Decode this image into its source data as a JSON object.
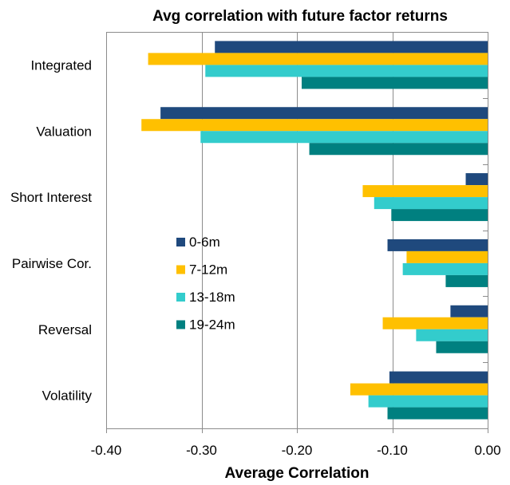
{
  "chart_data": {
    "type": "bar",
    "orientation": "horizontal",
    "title": "Avg correlation with future factor returns",
    "xlabel": "Average Correlation",
    "ylabel": "",
    "xlim": [
      -0.4,
      0.0
    ],
    "xticks": [
      -0.4,
      -0.3,
      -0.2,
      -0.1,
      0.0
    ],
    "xtick_labels": [
      "-0.40",
      "-0.30",
      "-0.20",
      "-0.10",
      "0.00"
    ],
    "grid": "vertical",
    "legend_position": "center-left",
    "categories": [
      "Integrated",
      "Valuation",
      "Short Interest",
      "Pairwise Cor.",
      "Reversal",
      "Volatility"
    ],
    "series": [
      {
        "name": "0-6m",
        "color": "#1F497D",
        "values": [
          -0.286,
          -0.343,
          -0.023,
          -0.105,
          -0.039,
          -0.103
        ]
      },
      {
        "name": "7-12m",
        "color": "#FFC000",
        "values": [
          -0.356,
          -0.363,
          -0.131,
          -0.085,
          -0.11,
          -0.144
        ]
      },
      {
        "name": "13-18m",
        "color": "#33CCCC",
        "values": [
          -0.296,
          -0.301,
          -0.119,
          -0.089,
          -0.075,
          -0.125
        ]
      },
      {
        "name": "19-24m",
        "color": "#008080",
        "values": [
          -0.195,
          -0.187,
          -0.101,
          -0.044,
          -0.054,
          -0.105
        ]
      }
    ]
  }
}
